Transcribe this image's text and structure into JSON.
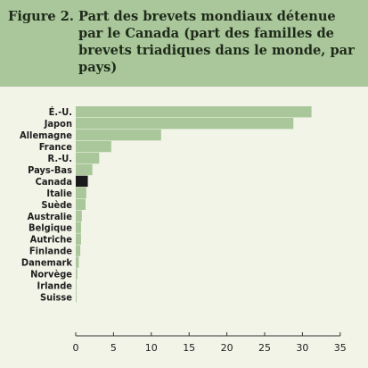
{
  "figure": {
    "label": "Figure 2.",
    "title": "Part des brevets mondiaux détenue par le Canada (part des familles de brevets triadiques dans le monde, par pays)"
  },
  "colors": {
    "header_bg": "#a9c79a",
    "panel_bg": "#f2f4e8",
    "bar": "#a9c79a",
    "bar_highlight": "#1a1a1a",
    "axis": "#333333"
  },
  "chart_data": {
    "type": "bar",
    "orientation": "horizontal",
    "categories": [
      "É.-U.",
      "Japon",
      "Allemagne",
      "France",
      "R.-U.",
      "Pays-Bas",
      "Canada",
      "Italie",
      "Suède",
      "Australie",
      "Belgique",
      "Autriche",
      "Finlande",
      "Danemark",
      "Norvège",
      "Irlande",
      "Suisse"
    ],
    "values": [
      31.2,
      28.8,
      11.3,
      4.7,
      3.1,
      2.2,
      1.6,
      1.4,
      1.3,
      0.8,
      0.7,
      0.7,
      0.6,
      0.4,
      0.2,
      0.1,
      0.1
    ],
    "highlight": "Canada",
    "xticks": [
      "0",
      "5",
      "10",
      "15",
      "20",
      "25",
      "30",
      "35"
    ],
    "xlim": [
      0,
      35
    ],
    "title": "",
    "xlabel": "",
    "ylabel": ""
  }
}
